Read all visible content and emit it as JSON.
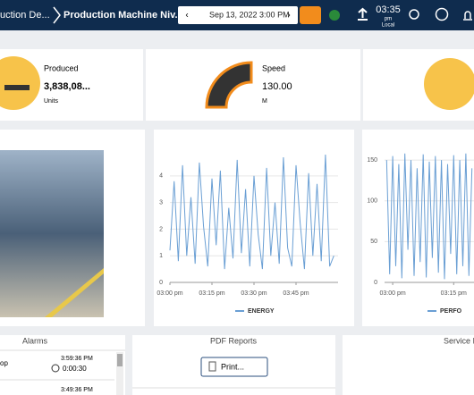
{
  "header": {
    "breadcrumb": "uction De...",
    "machine": "Production Machine Niv...",
    "date": "Sep 13, 2022 3:00 PM",
    "time": "03:35",
    "ampm": "pm",
    "zone": "Local"
  },
  "kpis": [
    {
      "label": "Produced",
      "value": "3,838,08...",
      "unit": "Units"
    },
    {
      "label": "Speed",
      "value": "130.00",
      "unit": "M"
    }
  ],
  "alarms": {
    "title": "Alarms",
    "items": [
      {
        "name": "op",
        "time": "3:59:36 PM",
        "duration": "0:00:30"
      },
      {
        "time": "3:49:36 PM"
      }
    ]
  },
  "reports": {
    "title": "PDF Reports",
    "button": "Print..."
  },
  "service": {
    "title": "Service I"
  },
  "chart_data": [
    {
      "type": "line",
      "xlim": [
        0,
        60
      ],
      "ylim": [
        0,
        4.9
      ],
      "yticks": [
        0,
        1,
        2,
        3,
        4
      ],
      "xticks": [
        {
          "value": 0,
          "label": "03:00 pm"
        },
        {
          "value": 15,
          "label": "03:15 pm"
        },
        {
          "value": 30,
          "label": "03:30 pm"
        },
        {
          "value": 45,
          "label": "03:45 pm"
        }
      ],
      "x": [
        0,
        1.5,
        3,
        4.5,
        6,
        7.5,
        9,
        10.5,
        12,
        13.5,
        15,
        16.5,
        18,
        19.5,
        21,
        22.5,
        24,
        25.5,
        27,
        28.5,
        30,
        31.5,
        33,
        34.5,
        36,
        37.5,
        39,
        40.5,
        42,
        43.5,
        45,
        46.5,
        48,
        49.5,
        51,
        52.5,
        54,
        55.5,
        57,
        58.5
      ],
      "series": [
        {
          "name": "ENERGY",
          "color": "#6a9fd4",
          "values": [
            1.2,
            3.8,
            0.8,
            4.4,
            1.0,
            3.2,
            0.7,
            4.5,
            2.1,
            0.6,
            3.9,
            1.4,
            4.2,
            0.5,
            2.8,
            0.9,
            4.6,
            1.1,
            3.5,
            0.6,
            4.0,
            1.8,
            0.5,
            4.3,
            1.0,
            3.0,
            0.7,
            4.7,
            1.3,
            0.6,
            4.4,
            2.2,
            0.5,
            4.1,
            1.0,
            3.7,
            0.8,
            4.8,
            0.6,
            1.0
          ]
        }
      ]
    },
    {
      "type": "line",
      "xlim": [
        -2,
        20
      ],
      "ylim": [
        0,
        160
      ],
      "yticks": [
        0,
        50,
        100,
        150
      ],
      "xticks": [
        {
          "value": 0,
          "label": "03:00 pm"
        },
        {
          "value": 15,
          "label": "03:15 pm"
        }
      ],
      "x": [
        -1.5,
        -0.75,
        0,
        0.75,
        1.5,
        2.25,
        3,
        3.75,
        4.5,
        5.25,
        6,
        6.75,
        7.5,
        8.25,
        9,
        9.75,
        10.5,
        11.25,
        12,
        12.75,
        13.5,
        14.25,
        15,
        15.75,
        16.5,
        17.25,
        18,
        18.75,
        19.5
      ],
      "series": [
        {
          "name": "PERFO",
          "color": "#6a9fd4",
          "values": [
            150,
            10,
            155,
            20,
            145,
            5,
            158,
            40,
            150,
            8,
            140,
            25,
            157,
            6,
            148,
            30,
            155,
            12,
            150,
            4,
            145,
            35,
            156,
            10,
            150,
            20,
            158,
            8,
            140
          ]
        }
      ]
    }
  ]
}
